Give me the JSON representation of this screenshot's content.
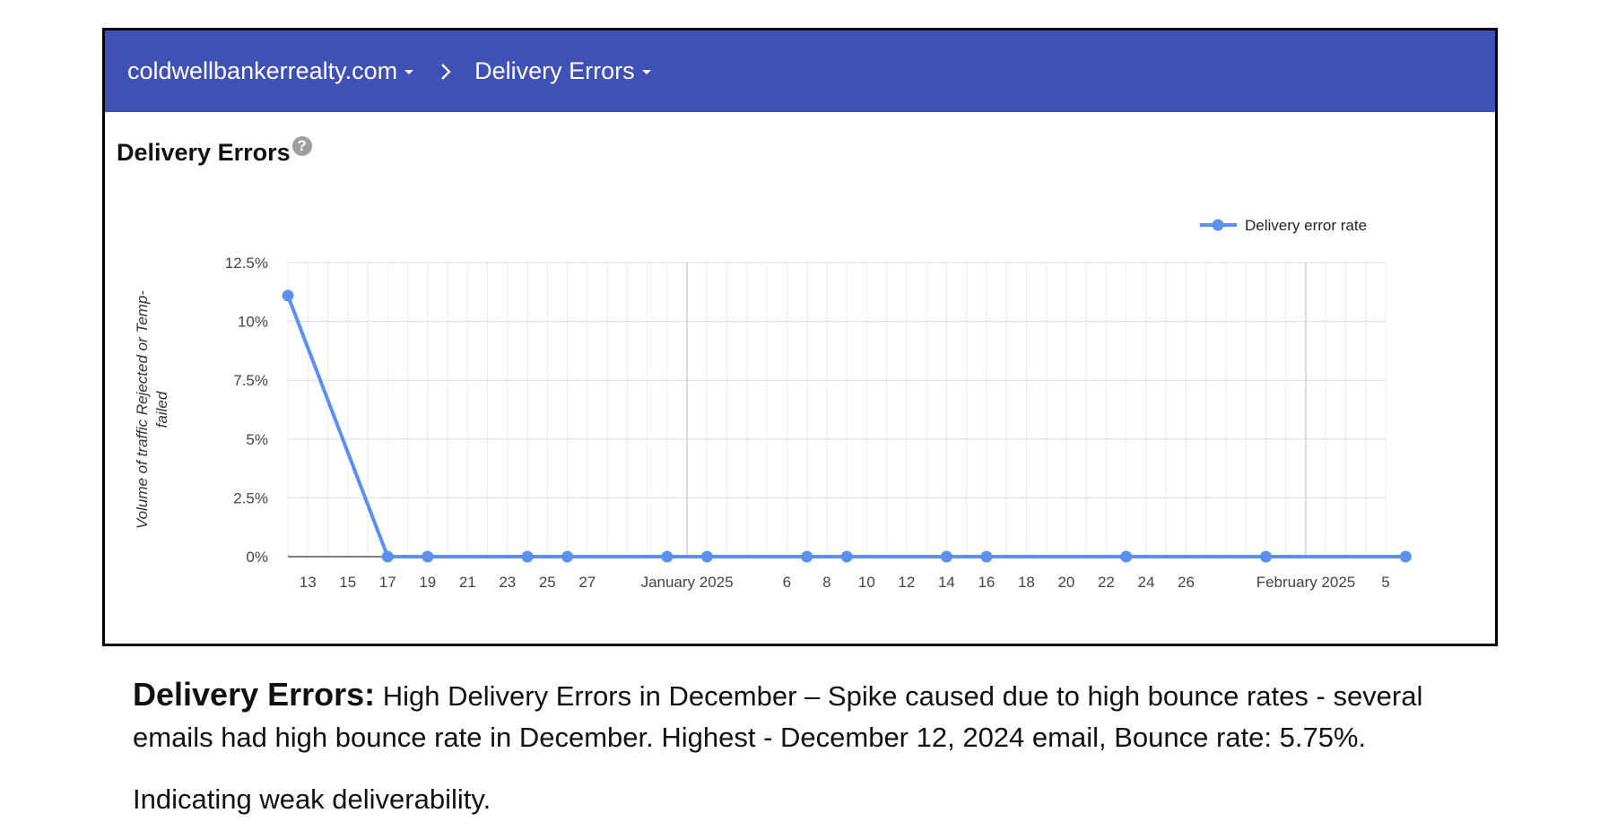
{
  "header": {
    "domain": "coldwellbankerrealty.com",
    "section": "Delivery Errors",
    "bg_color": "#3f51b5"
  },
  "card": {
    "title": "Delivery Errors",
    "help_icon": "question-circle-icon",
    "help_glyph": "?"
  },
  "chart_data": {
    "type": "line",
    "title": "Delivery Errors",
    "ylabel_line1": "Volume of traffic Rejected or Temp-",
    "ylabel_line2": "failed",
    "xlabel": "",
    "y_ticks": [
      "0%",
      "2.5%",
      "5%",
      "7.5%",
      "10%",
      "12.5%"
    ],
    "ylim": [
      0,
      12.5
    ],
    "y_unit": "%",
    "x_start": "2024-12-12",
    "x_end": "2025-02-05",
    "x_ticks": [
      {
        "date": "2024-12-13",
        "label": "13"
      },
      {
        "date": "2024-12-15",
        "label": "15"
      },
      {
        "date": "2024-12-17",
        "label": "17"
      },
      {
        "date": "2024-12-19",
        "label": "19"
      },
      {
        "date": "2024-12-21",
        "label": "21"
      },
      {
        "date": "2024-12-23",
        "label": "23"
      },
      {
        "date": "2024-12-25",
        "label": "25"
      },
      {
        "date": "2024-12-27",
        "label": "27"
      },
      {
        "date": "2025-01-01",
        "label": "January 2025"
      },
      {
        "date": "2025-01-06",
        "label": "6"
      },
      {
        "date": "2025-01-08",
        "label": "8"
      },
      {
        "date": "2025-01-10",
        "label": "10"
      },
      {
        "date": "2025-01-12",
        "label": "12"
      },
      {
        "date": "2025-01-14",
        "label": "14"
      },
      {
        "date": "2025-01-16",
        "label": "16"
      },
      {
        "date": "2025-01-18",
        "label": "18"
      },
      {
        "date": "2025-01-20",
        "label": "20"
      },
      {
        "date": "2025-01-22",
        "label": "22"
      },
      {
        "date": "2025-01-24",
        "label": "24"
      },
      {
        "date": "2025-01-26",
        "label": "26"
      },
      {
        "date": "2025-02-01",
        "label": "February 2025"
      },
      {
        "date": "2025-02-05",
        "label": "5"
      }
    ],
    "series": [
      {
        "name": "Delivery error rate",
        "color": "#5b8ff0",
        "points": [
          {
            "date": "2024-12-12",
            "value": 11.1
          },
          {
            "date": "2024-12-17",
            "value": 0
          },
          {
            "date": "2024-12-19",
            "value": 0
          },
          {
            "date": "2024-12-24",
            "value": 0
          },
          {
            "date": "2024-12-26",
            "value": 0
          },
          {
            "date": "2024-12-31",
            "value": 0
          },
          {
            "date": "2025-01-02",
            "value": 0
          },
          {
            "date": "2025-01-07",
            "value": 0
          },
          {
            "date": "2025-01-09",
            "value": 0
          },
          {
            "date": "2025-01-14",
            "value": 0
          },
          {
            "date": "2025-01-16",
            "value": 0
          },
          {
            "date": "2025-01-23",
            "value": 0
          },
          {
            "date": "2025-01-30",
            "value": 0
          },
          {
            "date": "2025-02-06",
            "value": 0
          }
        ]
      }
    ],
    "grid": true,
    "legend_position": "top-right"
  },
  "notes": {
    "heading": "Delivery Errors:",
    "body": " High Delivery Errors in December – Spike caused due to high bounce rates - several emails had high bounce rate in December. Highest - December 12, 2024 email, Bounce rate: 5.75%.",
    "conclusion": "Indicating weak deliverability."
  }
}
